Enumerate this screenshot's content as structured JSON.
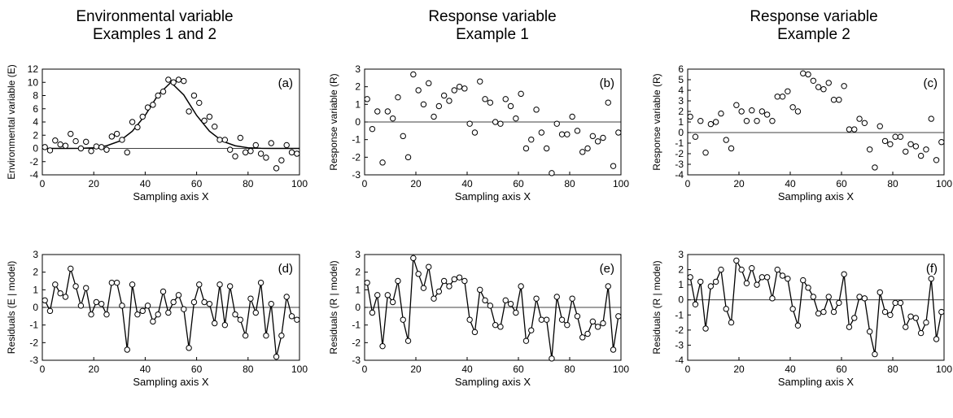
{
  "columns": [
    {
      "line1": "Environmental variable",
      "line2": "Examples 1 and 2"
    },
    {
      "line1": "Response variable",
      "line2": "Example 1"
    },
    {
      "line1": "Response variable",
      "line2": "Example 2"
    }
  ],
  "chart_data": [
    {
      "type": "scatter",
      "panel_label": "(a)",
      "xlabel": "Sampling axis X",
      "ylabel": "Environmental variable (E)",
      "xlim": [
        0,
        100
      ],
      "ylim": [
        -4,
        12
      ],
      "xticks": [
        0,
        20,
        40,
        60,
        80,
        100
      ],
      "yticks": [
        -4,
        -2,
        0,
        2,
        4,
        6,
        8,
        10,
        12
      ],
      "zero_line": true,
      "connect": false,
      "x": [
        1,
        3,
        5,
        7,
        9,
        11,
        13,
        15,
        17,
        19,
        21,
        23,
        25,
        27,
        29,
        31,
        33,
        35,
        37,
        39,
        41,
        43,
        45,
        47,
        49,
        51,
        53,
        55,
        57,
        59,
        61,
        63,
        65,
        67,
        69,
        71,
        73,
        75,
        77,
        79,
        81,
        83,
        85,
        87,
        89,
        91,
        93,
        95,
        97,
        99
      ],
      "y": [
        0.2,
        -0.3,
        1.2,
        0.6,
        0.4,
        2.2,
        1.1,
        0.0,
        1.0,
        -0.4,
        0.3,
        0.2,
        -0.2,
        1.8,
        2.2,
        1.3,
        -0.6,
        4.0,
        3.2,
        4.8,
        6.2,
        6.6,
        8.0,
        8.6,
        10.4,
        10.0,
        10.4,
        10.2,
        5.6,
        8.0,
        6.9,
        4.2,
        4.8,
        3.3,
        1.3,
        1.3,
        -0.2,
        -1.2,
        1.6,
        -0.6,
        -0.4,
        0.5,
        -0.8,
        -1.4,
        0.8,
        -3.0,
        -1.8,
        0.5,
        -0.6,
        -0.8
      ],
      "curve": {
        "x": [
          0,
          5,
          10,
          15,
          20,
          25,
          30,
          35,
          40,
          45,
          50,
          55,
          60,
          65,
          70,
          75,
          80,
          85,
          90,
          95,
          100
        ],
        "y": [
          0.0,
          0.0,
          0.0,
          0.02,
          0.1,
          0.4,
          1.1,
          2.6,
          5.0,
          8.1,
          10.0,
          8.1,
          5.0,
          2.6,
          1.1,
          0.4,
          0.1,
          0.02,
          0.0,
          0.0,
          0.0
        ]
      }
    },
    {
      "type": "scatter",
      "panel_label": "(b)",
      "xlabel": "Sampling axis X",
      "ylabel": "Response variable (R)",
      "xlim": [
        0,
        100
      ],
      "ylim": [
        -3,
        3
      ],
      "xticks": [
        0,
        20,
        40,
        60,
        80,
        100
      ],
      "yticks": [
        -3,
        -2,
        -1,
        0,
        1,
        2,
        3
      ],
      "zero_line": true,
      "connect": false,
      "x": [
        1,
        3,
        5,
        7,
        9,
        11,
        13,
        15,
        17,
        19,
        21,
        23,
        25,
        27,
        29,
        31,
        33,
        35,
        37,
        39,
        41,
        43,
        45,
        47,
        49,
        51,
        53,
        55,
        57,
        59,
        61,
        63,
        65,
        67,
        69,
        71,
        73,
        75,
        77,
        79,
        81,
        83,
        85,
        87,
        89,
        91,
        93,
        95,
        97,
        99
      ],
      "y": [
        1.3,
        -0.4,
        0.6,
        -2.3,
        0.6,
        0.2,
        1.4,
        -0.8,
        -2.0,
        2.7,
        1.8,
        1.0,
        2.2,
        0.3,
        0.9,
        1.5,
        1.2,
        1.8,
        2.0,
        1.9,
        -0.1,
        -0.6,
        2.3,
        1.3,
        1.1,
        0.0,
        -0.1,
        1.3,
        0.9,
        0.2,
        1.6,
        -1.5,
        -1.0,
        0.7,
        -0.6,
        -1.5,
        -2.9,
        -0.1,
        -0.7,
        -0.7,
        0.3,
        -0.5,
        -1.7,
        -1.5,
        -0.8,
        -1.1,
        -0.9,
        1.1,
        -2.5,
        -0.6
      ]
    },
    {
      "type": "scatter",
      "panel_label": "(c)",
      "xlabel": "Sampling axis X",
      "ylabel": "Response variable (R)",
      "xlim": [
        0,
        100
      ],
      "ylim": [
        -4,
        6
      ],
      "xticks": [
        0,
        20,
        40,
        60,
        80,
        100
      ],
      "yticks": [
        -4,
        -3,
        -2,
        -1,
        0,
        1,
        2,
        3,
        4,
        5,
        6
      ],
      "zero_line": true,
      "connect": false,
      "x": [
        1,
        3,
        5,
        7,
        9,
        11,
        13,
        15,
        17,
        19,
        21,
        23,
        25,
        27,
        29,
        31,
        33,
        35,
        37,
        39,
        41,
        43,
        45,
        47,
        49,
        51,
        53,
        55,
        57,
        59,
        61,
        63,
        65,
        67,
        69,
        71,
        73,
        75,
        77,
        79,
        81,
        83,
        85,
        87,
        89,
        91,
        93,
        95,
        97,
        99
      ],
      "y": [
        1.5,
        -0.4,
        1.1,
        -1.9,
        0.8,
        1.0,
        1.8,
        -0.7,
        -1.5,
        2.6,
        2.0,
        1.1,
        2.1,
        1.1,
        2.0,
        1.7,
        1.1,
        3.4,
        3.4,
        3.9,
        2.4,
        2.0,
        5.6,
        5.5,
        4.9,
        4.3,
        4.1,
        4.7,
        3.1,
        3.1,
        4.4,
        0.3,
        0.3,
        1.3,
        0.9,
        -1.6,
        -3.3,
        0.6,
        -0.8,
        -1.1,
        -0.4,
        -0.4,
        -1.8,
        -1.1,
        -1.3,
        -2.2,
        -1.6,
        1.3,
        -2.6,
        -0.9
      ]
    },
    {
      "type": "line",
      "panel_label": "(d)",
      "xlabel": "Sampling axis X",
      "ylabel": "Residuals (E | model)",
      "xlim": [
        0,
        100
      ],
      "ylim": [
        -3,
        3
      ],
      "xticks": [
        0,
        20,
        40,
        60,
        80,
        100
      ],
      "yticks": [
        -3,
        -2,
        -1,
        0,
        1,
        2,
        3
      ],
      "zero_line": true,
      "connect": true,
      "x": [
        1,
        3,
        5,
        7,
        9,
        11,
        13,
        15,
        17,
        19,
        21,
        23,
        25,
        27,
        29,
        31,
        33,
        35,
        37,
        39,
        41,
        43,
        45,
        47,
        49,
        51,
        53,
        55,
        57,
        59,
        61,
        63,
        65,
        67,
        69,
        71,
        73,
        75,
        77,
        79,
        81,
        83,
        85,
        87,
        89,
        91,
        93,
        95,
        97,
        99
      ],
      "y": [
        0.4,
        -0.2,
        1.3,
        0.8,
        0.6,
        2.2,
        1.2,
        0.1,
        1.1,
        -0.4,
        0.3,
        0.2,
        -0.4,
        1.4,
        1.4,
        0.1,
        -2.4,
        1.3,
        -0.4,
        -0.2,
        0.1,
        -0.8,
        -0.4,
        0.9,
        -0.3,
        0.3,
        0.7,
        -0.1,
        -2.3,
        0.3,
        1.3,
        0.3,
        0.2,
        -0.9,
        1.3,
        -1.0,
        1.2,
        -0.4,
        -0.7,
        -1.6,
        0.5,
        -0.3,
        1.4,
        -1.6,
        0.2,
        -2.8,
        -1.6,
        0.6,
        -0.5,
        -0.7
      ]
    },
    {
      "type": "line",
      "panel_label": "(e)",
      "xlabel": "Sampling axis X",
      "ylabel": "Residuals (R | model)",
      "xlim": [
        0,
        100
      ],
      "ylim": [
        -3,
        3
      ],
      "xticks": [
        0,
        20,
        40,
        60,
        80,
        100
      ],
      "yticks": [
        -3,
        -2,
        -1,
        0,
        1,
        2,
        3
      ],
      "zero_line": true,
      "connect": true,
      "x": [
        1,
        3,
        5,
        7,
        9,
        11,
        13,
        15,
        17,
        19,
        21,
        23,
        25,
        27,
        29,
        31,
        33,
        35,
        37,
        39,
        41,
        43,
        45,
        47,
        49,
        51,
        53,
        55,
        57,
        59,
        61,
        63,
        65,
        67,
        69,
        71,
        73,
        75,
        77,
        79,
        81,
        83,
        85,
        87,
        89,
        91,
        93,
        95,
        97,
        99
      ],
      "y": [
        1.4,
        -0.3,
        0.7,
        -2.2,
        0.7,
        0.3,
        1.5,
        -0.7,
        -1.9,
        2.8,
        1.9,
        1.1,
        2.3,
        0.5,
        0.9,
        1.5,
        1.2,
        1.6,
        1.7,
        1.5,
        -0.7,
        -1.4,
        1.0,
        0.4,
        0.1,
        -1.0,
        -1.1,
        0.4,
        0.2,
        -0.3,
        1.2,
        -1.9,
        -1.3,
        0.5,
        -0.7,
        -0.7,
        -2.9,
        0.6,
        -0.7,
        -1.0,
        0.5,
        -0.5,
        -1.7,
        -1.5,
        -0.8,
        -1.1,
        -0.9,
        1.2,
        -2.4,
        -0.5
      ]
    },
    {
      "type": "line",
      "panel_label": "(f)",
      "xlabel": "Sampling axis X",
      "ylabel": "Residuals (R | model)",
      "xlim": [
        0,
        100
      ],
      "ylim": [
        -4,
        3
      ],
      "xticks": [
        0,
        20,
        40,
        60,
        80,
        100
      ],
      "yticks": [
        -4,
        -3,
        -2,
        -1,
        0,
        1,
        2,
        3
      ],
      "zero_line": true,
      "connect": true,
      "x": [
        1,
        3,
        5,
        7,
        9,
        11,
        13,
        15,
        17,
        19,
        21,
        23,
        25,
        27,
        29,
        31,
        33,
        35,
        37,
        39,
        41,
        43,
        45,
        47,
        49,
        51,
        53,
        55,
        57,
        59,
        61,
        63,
        65,
        67,
        69,
        71,
        73,
        75,
        77,
        79,
        81,
        83,
        85,
        87,
        89,
        91,
        93,
        95,
        97,
        99
      ],
      "y": [
        1.5,
        -0.3,
        1.2,
        -1.9,
        0.9,
        1.2,
        2.0,
        -0.6,
        -1.5,
        2.6,
        2.0,
        1.1,
        2.1,
        1.0,
        1.5,
        1.5,
        0.1,
        2.0,
        1.6,
        1.4,
        -0.6,
        -1.7,
        1.3,
        0.8,
        0.2,
        -0.9,
        -0.8,
        0.2,
        -0.8,
        -0.2,
        1.7,
        -1.8,
        -1.2,
        0.2,
        0.1,
        -2.1,
        -3.6,
        0.5,
        -0.8,
        -1.0,
        -0.2,
        -0.2,
        -1.8,
        -1.1,
        -1.2,
        -2.2,
        -1.5,
        1.4,
        -2.6,
        -0.8
      ]
    }
  ]
}
